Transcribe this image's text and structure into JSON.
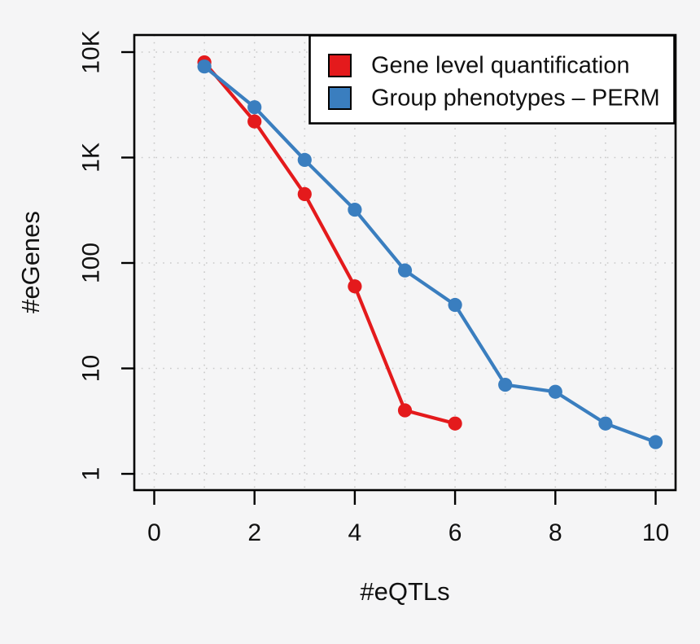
{
  "chart_data": {
    "type": "line",
    "title": "",
    "xlabel": "#eQTLs",
    "ylabel": "#eGenes",
    "x_axis": {
      "ticks": [
        0,
        2,
        4,
        6,
        8,
        10
      ],
      "tick_labels": [
        "0",
        "2",
        "4",
        "6",
        "8",
        "10"
      ],
      "gridlines": [
        0,
        1,
        2,
        3,
        4,
        5,
        6,
        7,
        8,
        9,
        10
      ],
      "range": [
        -0.4,
        10.4
      ]
    },
    "y_axis": {
      "scale": "log10",
      "ticks": [
        {
          "value": 1,
          "label": "1"
        },
        {
          "value": 10,
          "label": "10"
        },
        {
          "value": 100,
          "label": "100"
        },
        {
          "value": 1000,
          "label": "1K"
        },
        {
          "value": 10000,
          "label": "10K"
        }
      ],
      "range": [
        0.7,
        14500
      ]
    },
    "grid": true,
    "legend_position": "top-right",
    "series": [
      {
        "name": "Gene level quantification",
        "color": "#e41a1c",
        "x": [
          1,
          2,
          3,
          4,
          5,
          6
        ],
        "values": [
          8000,
          2200,
          450,
          60,
          4,
          3
        ]
      },
      {
        "name": "Group phenotypes – PERM",
        "color": "#3a7ebf",
        "x": [
          1,
          2,
          3,
          4,
          5,
          6,
          7,
          8,
          9,
          10
        ],
        "values": [
          7300,
          3000,
          950,
          320,
          85,
          40,
          7,
          6,
          3,
          2
        ]
      }
    ]
  },
  "colors": {
    "background": "#f5f5f6",
    "legend_background": "#ffffff",
    "gridline": "#c9c9c9",
    "axis": "#000000",
    "text": "#111111"
  }
}
